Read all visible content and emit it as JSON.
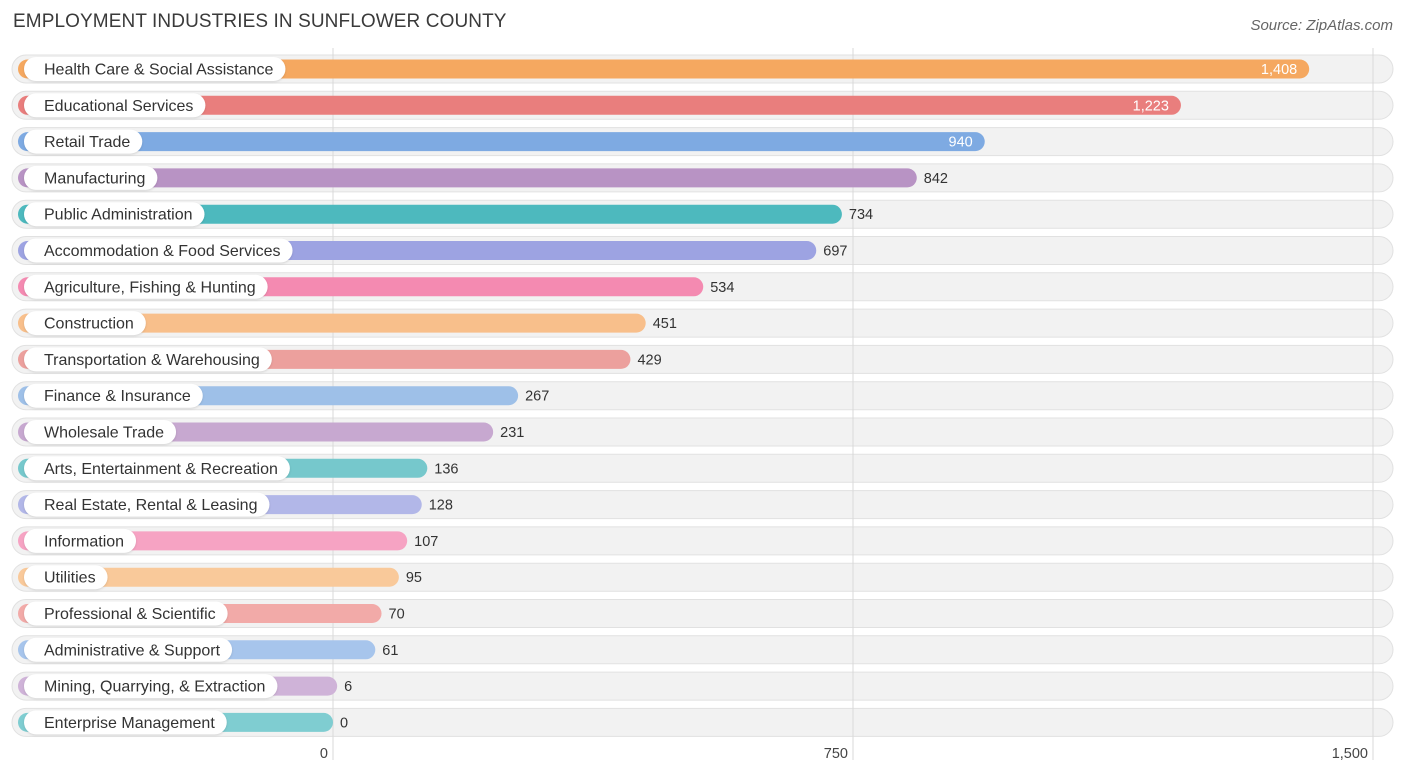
{
  "header": {
    "title": "EMPLOYMENT INDUSTRIES IN SUNFLOWER COUNTY",
    "source": "Source: ZipAtlas.com"
  },
  "chart_data": {
    "type": "bar",
    "orientation": "horizontal",
    "title": "EMPLOYMENT INDUSTRIES IN SUNFLOWER COUNTY",
    "xlabel": "",
    "ylabel": "",
    "xlim": [
      0,
      1500
    ],
    "ticks": [
      0,
      750,
      1500
    ],
    "tick_labels": [
      "0",
      "750",
      "1,500"
    ],
    "grid": true,
    "categories": [
      "Health Care & Social Assistance",
      "Educational Services",
      "Retail Trade",
      "Manufacturing",
      "Public Administration",
      "Accommodation & Food Services",
      "Agriculture, Fishing & Hunting",
      "Construction",
      "Transportation & Warehousing",
      "Finance & Insurance",
      "Wholesale Trade",
      "Arts, Entertainment & Recreation",
      "Real Estate, Rental & Leasing",
      "Information",
      "Utilities",
      "Professional & Scientific",
      "Administrative & Support",
      "Mining, Quarrying, & Extraction",
      "Enterprise Management"
    ],
    "values": [
      1408,
      1223,
      940,
      842,
      734,
      697,
      534,
      451,
      429,
      267,
      231,
      136,
      128,
      107,
      95,
      70,
      61,
      6,
      0
    ],
    "value_labels": [
      "1,408",
      "1,223",
      "940",
      "842",
      "734",
      "697",
      "534",
      "451",
      "429",
      "267",
      "231",
      "136",
      "128",
      "107",
      "95",
      "70",
      "61",
      "6",
      "0"
    ],
    "colors": [
      "#f5a860",
      "#e97e7d",
      "#7eaae2",
      "#b893c4",
      "#4db9be",
      "#9da3e2",
      "#f48ab1",
      "#f8bf8b",
      "#eca09d",
      "#9ec0e8",
      "#c7a8d0",
      "#76c8cc",
      "#b2b7e8",
      "#f6a3c3",
      "#f9c99a",
      "#f2aaa8",
      "#a7c5ec",
      "#cfb3d8",
      "#7fcdd1"
    ]
  }
}
